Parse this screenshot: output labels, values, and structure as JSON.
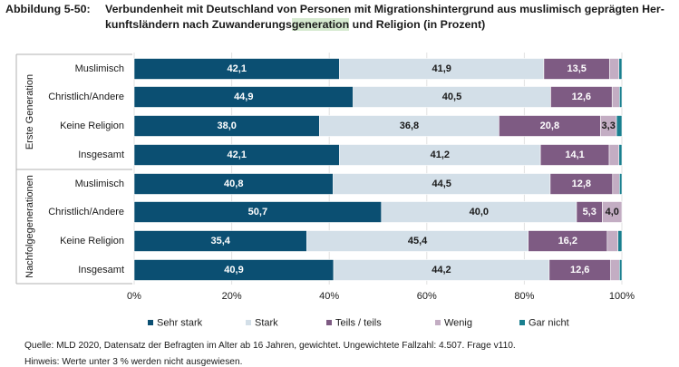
{
  "title": {
    "label": "Abbildung 5-50:",
    "line1": "Verbundenheit mit Deutschland von Personen mit Migrationshintergrund aus muslimisch geprägten Her-",
    "line2_pre": "kunftsländern nach Zuwanderungs",
    "line2_hl": "generation",
    "line2_post": " und Religion (in Prozent)"
  },
  "chart_data": {
    "type": "bar",
    "orientation": "horizontal",
    "stacked": true,
    "xlim": [
      0,
      100
    ],
    "xticks": [
      "0%",
      "20%",
      "40%",
      "60%",
      "80%",
      "100%"
    ],
    "groups": [
      {
        "label": "Erste Generation",
        "rows": [
          {
            "label": "Muslimisch",
            "values": [
              42.1,
              41.9,
              13.5,
              1.9,
              0.6
            ],
            "labels": [
              "42,1",
              "41,9",
              "13,5",
              "",
              ""
            ]
          },
          {
            "label": "Christlich/Andere",
            "values": [
              44.9,
              40.5,
              12.6,
              1.5,
              0.5
            ],
            "labels": [
              "44,9",
              "40,5",
              "12,6",
              "",
              ""
            ]
          },
          {
            "label": "Keine Religion",
            "values": [
              38.0,
              36.8,
              20.8,
              3.3,
              1.1
            ],
            "labels": [
              "38,0",
              "36,8",
              "20,8",
              "3,3",
              ""
            ]
          },
          {
            "label": "Insgesamt",
            "values": [
              42.1,
              41.2,
              14.1,
              2.0,
              0.6
            ],
            "labels": [
              "42,1",
              "41,2",
              "14,1",
              "",
              ""
            ]
          }
        ]
      },
      {
        "label": "Nachfolgegenerationen",
        "rows": [
          {
            "label": "Muslimisch",
            "values": [
              40.8,
              44.5,
              12.8,
              1.4,
              0.5
            ],
            "labels": [
              "40,8",
              "44,5",
              "12,8",
              "",
              ""
            ]
          },
          {
            "label": "Christlich/Andere",
            "values": [
              50.7,
              40.0,
              5.3,
              4.0,
              0.0
            ],
            "labels": [
              "50,7",
              "40,0",
              "5,3",
              "4,0",
              ""
            ]
          },
          {
            "label": "Keine Religion",
            "values": [
              35.4,
              45.4,
              16.2,
              2.2,
              0.8
            ],
            "labels": [
              "35,4",
              "45,4",
              "16,2",
              "",
              ""
            ]
          },
          {
            "label": "Insgesamt",
            "values": [
              40.9,
              44.2,
              12.6,
              1.8,
              0.5
            ],
            "labels": [
              "40,9",
              "44,2",
              "12,6",
              "",
              ""
            ]
          }
        ]
      }
    ],
    "series": [
      {
        "name": "Sehr stark",
        "color": "#0b4f72",
        "label_color": "#ffffff"
      },
      {
        "name": "Stark",
        "color": "#d3dfe8",
        "label_color": "#1a1a1a"
      },
      {
        "name": "Teils / teils",
        "color": "#7e5b83",
        "label_color": "#ffffff"
      },
      {
        "name": "Wenig",
        "color": "#c3adc3",
        "label_color": "#1a1a1a"
      },
      {
        "name": "Gar nicht",
        "color": "#1a7f8f",
        "label_color": "#ffffff"
      }
    ]
  },
  "footer": {
    "source": "Quelle: MLD 2020, Datensatz der Befragten im Alter ab 16 Jahren, gewichtet. Ungewichtete Fallzahl: 4.507. Frage v110.",
    "note": "Hinweis: Werte unter 3 % werden nicht ausgewiesen."
  }
}
